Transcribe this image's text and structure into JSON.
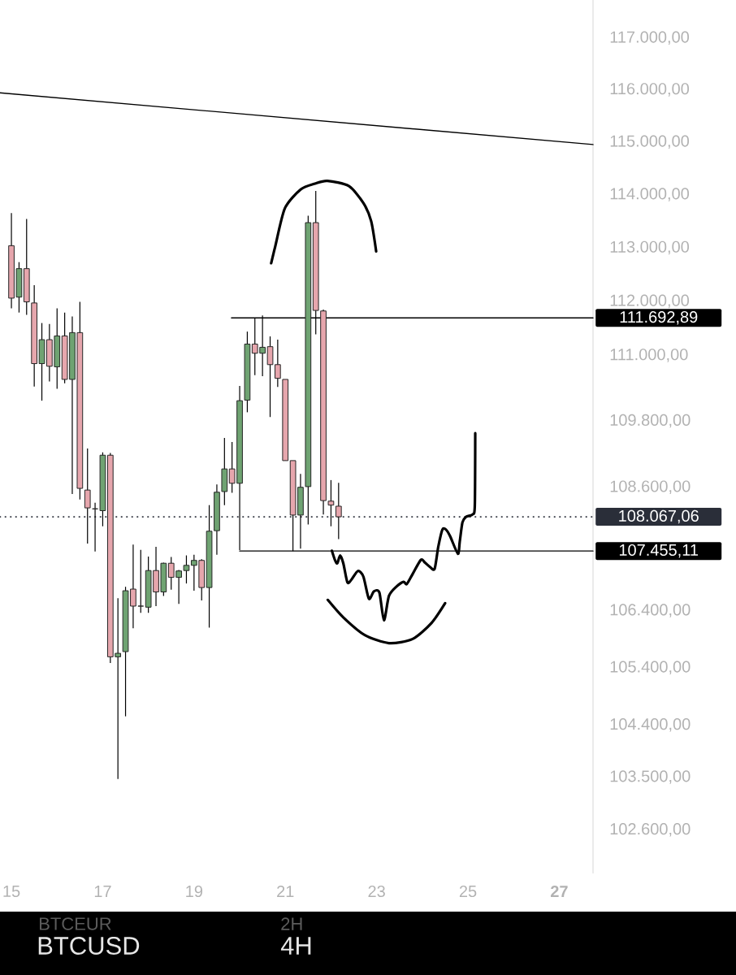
{
  "chart_data": {
    "type": "candlestick",
    "title": "BTCUSD",
    "subtitle": "4H",
    "x": [
      15,
      15.167,
      15.333,
      15.5,
      15.667,
      15.833,
      16,
      16.167,
      16.333,
      16.5,
      16.667,
      16.833,
      17,
      17.167,
      17.333,
      17.5,
      17.667,
      17.833,
      18,
      18.167,
      18.333,
      18.5,
      18.667,
      18.833,
      19,
      19.167,
      19.333,
      19.5,
      19.667,
      19.833,
      20,
      20.167,
      20.333,
      20.5,
      20.667,
      20.833,
      21,
      21.167,
      21.333,
      21.5,
      21.667,
      21.833,
      22,
      22.167
    ],
    "ohlc": [
      [
        113040,
        113650,
        111870,
        112060
      ],
      [
        112080,
        112730,
        111790,
        112610
      ],
      [
        112610,
        113540,
        111750,
        111990
      ],
      [
        111970,
        112300,
        110430,
        110850
      ],
      [
        110850,
        111600,
        110170,
        111290
      ],
      [
        111290,
        111580,
        110520,
        110800
      ],
      [
        110790,
        111870,
        110390,
        111360
      ],
      [
        111360,
        111790,
        110490,
        110560
      ],
      [
        110560,
        111720,
        108480,
        111420
      ],
      [
        111420,
        111990,
        108380,
        108580
      ],
      [
        108550,
        109300,
        107590,
        108230
      ],
      [
        108210,
        108320,
        107450,
        108210
      ],
      [
        108180,
        109230,
        107900,
        109180
      ],
      [
        109180,
        109220,
        105480,
        105590
      ],
      [
        105590,
        106620,
        103470,
        105650
      ],
      [
        105680,
        106820,
        104550,
        106750
      ],
      [
        106780,
        107570,
        106090,
        106480
      ],
      [
        106480,
        107480,
        106360,
        106480
      ],
      [
        106460,
        107360,
        106360,
        107110
      ],
      [
        107110,
        107530,
        106480,
        106730
      ],
      [
        106730,
        107250,
        106660,
        107240
      ],
      [
        107240,
        107350,
        106770,
        106990
      ],
      [
        106990,
        107120,
        106520,
        107100
      ],
      [
        107110,
        107380,
        106880,
        107200
      ],
      [
        107200,
        107390,
        106750,
        107290
      ],
      [
        107290,
        107310,
        106580,
        106810
      ],
      [
        106810,
        108280,
        106100,
        107810
      ],
      [
        107820,
        108650,
        107390,
        108510
      ],
      [
        108520,
        109490,
        108280,
        108930
      ],
      [
        108930,
        109420,
        108500,
        108670
      ],
      [
        108670,
        110440,
        107470,
        110170
      ],
      [
        110180,
        111440,
        109960,
        111210
      ],
      [
        111210,
        111690,
        110640,
        111040
      ],
      [
        111040,
        111740,
        110620,
        111150
      ],
      [
        111160,
        111350,
        109870,
        110830
      ],
      [
        110830,
        111290,
        110420,
        110580
      ],
      [
        110560,
        110560,
        109080,
        109080
      ],
      [
        109080,
        109080,
        107455,
        108100
      ],
      [
        108100,
        108840,
        107500,
        108600
      ],
      [
        108610,
        113600,
        107930,
        113470
      ],
      [
        113470,
        114070,
        111390,
        111830
      ],
      [
        111820,
        111850,
        108110,
        108360
      ],
      [
        108350,
        108730,
        107900,
        108280
      ],
      [
        108260,
        108680,
        107670,
        108067.06
      ]
    ],
    "colors": [
      "#e6a6ad",
      "#6fa372",
      "#e6a6ad",
      "#e6a6ad",
      "#6fa372",
      "#e6a6ad",
      "#6fa372",
      "#e6a6ad",
      "#6fa372",
      "#e6a6ad",
      "#e6a6ad",
      "#262626",
      "#6fa372",
      "#e6a6ad",
      "#6fa372",
      "#6fa372",
      "#e6a6ad",
      "#262626",
      "#6fa372",
      "#e6a6ad",
      "#6fa372",
      "#e6a6ad",
      "#6fa372",
      "#6fa372",
      "#6fa372",
      "#e6a6ad",
      "#6fa372",
      "#6fa372",
      "#6fa372",
      "#e6a6ad",
      "#6fa372",
      "#6fa372",
      "#e6a6ad",
      "#6fa372",
      "#e6a6ad",
      "#e6a6ad",
      "#e6a6ad",
      "#e6a6ad",
      "#6fa372",
      "#6fa372",
      "#e6a6ad",
      "#e6a6ad",
      "#e6a6ad",
      "#e6a6ad"
    ],
    "series": [
      {
        "type": "line",
        "color": "#000000",
        "x": [
          14.75,
          27.74
        ],
        "values": [
          115940,
          114950
        ]
      },
      {
        "type": "line",
        "color": "#000000",
        "x": [
          19.82,
          27.74
        ],
        "values": [
          111692.89,
          111692.89
        ]
      },
      {
        "type": "line",
        "color": "#000000",
        "x": [
          20.0,
          27.74
        ],
        "values": [
          107455.11,
          107455.11
        ]
      },
      {
        "type": "line",
        "color": "#000000",
        "x": [
          20.69,
          20.78,
          20.99,
          21.34,
          21.65,
          21.92,
          22.39,
          22.71,
          22.88,
          22.99
        ],
        "values": [
          112710,
          113030,
          113740,
          114100,
          114210,
          114260,
          114160,
          113840,
          113500,
          112930
        ]
      },
      {
        "type": "line",
        "color": "#000000",
        "x": [
          21.93,
          22.27,
          22.74,
          23.27,
          23.79,
          24.2,
          24.5
        ],
        "values": [
          106590,
          106280,
          105970,
          105830,
          105900,
          106180,
          106530
        ]
      },
      {
        "type": "line",
        "color": "#000000",
        "x": [
          22.02,
          22.09,
          22.14,
          22.2,
          22.27,
          22.36,
          22.45,
          22.59,
          22.71,
          22.83,
          22.94,
          23.06,
          23.16,
          23.27,
          23.44,
          23.59,
          23.66,
          23.79,
          23.97,
          24.06,
          24.17,
          24.27,
          24.35,
          24.44,
          24.52,
          24.61,
          24.78,
          24.82,
          24.88,
          24.96,
          25.1,
          25.15,
          25.16
        ],
        "values": [
          107460,
          107290,
          107240,
          107380,
          107240,
          106900,
          106950,
          107100,
          107000,
          106610,
          106740,
          106720,
          106230,
          106660,
          106830,
          106910,
          106870,
          107050,
          107300,
          107250,
          107170,
          107140,
          107530,
          107840,
          107840,
          107720,
          107410,
          107620,
          107970,
          108070,
          108110,
          108260,
          109580
        ]
      }
    ],
    "xlim": [
      14.75,
      27.74
    ],
    "xticks": [
      15,
      17,
      19,
      21,
      23,
      25,
      {
        "value": 27,
        "label": "**27**"
      }
    ],
    "ylim": [
      101860,
      117740
    ],
    "yticks": [
      {
        "value": 117000,
        "label": "117.000,00"
      },
      {
        "value": 116000,
        "label": "116.000,00"
      },
      {
        "value": 115000,
        "label": "115.000,00"
      },
      {
        "value": 114000,
        "label": "114.000,00"
      },
      {
        "value": 113000,
        "label": "113.000,00"
      },
      {
        "value": 112000,
        "label": "112.000,00"
      },
      {
        "value": 111000,
        "label": "111.000,00"
      },
      {
        "value": 109800,
        "label": "109.800,00"
      },
      {
        "value": 108600,
        "label": "108.600,00"
      },
      {
        "value": 106400,
        "label": "106.400,00"
      },
      {
        "value": 105400,
        "label": "105.400,00"
      },
      {
        "value": 104400,
        "label": "104.400,00"
      },
      {
        "value": 103500,
        "label": "103.500,00"
      },
      {
        "value": 102600,
        "label": "102.600,00"
      }
    ],
    "log": true,
    "ref_lines": [
      {
        "axis": "y",
        "value": 108067.06,
        "label": "108.067,06",
        "line_style": "dotted",
        "color": "#2a2e39"
      }
    ],
    "annotations": [
      {
        "text": "111.692,89",
        "x": 27.74,
        "y": 111692.89
      },
      {
        "text": "107.455,11",
        "x": 27.74,
        "y": 107455.11
      },
      "BTCEUR",
      "2H"
    ]
  }
}
